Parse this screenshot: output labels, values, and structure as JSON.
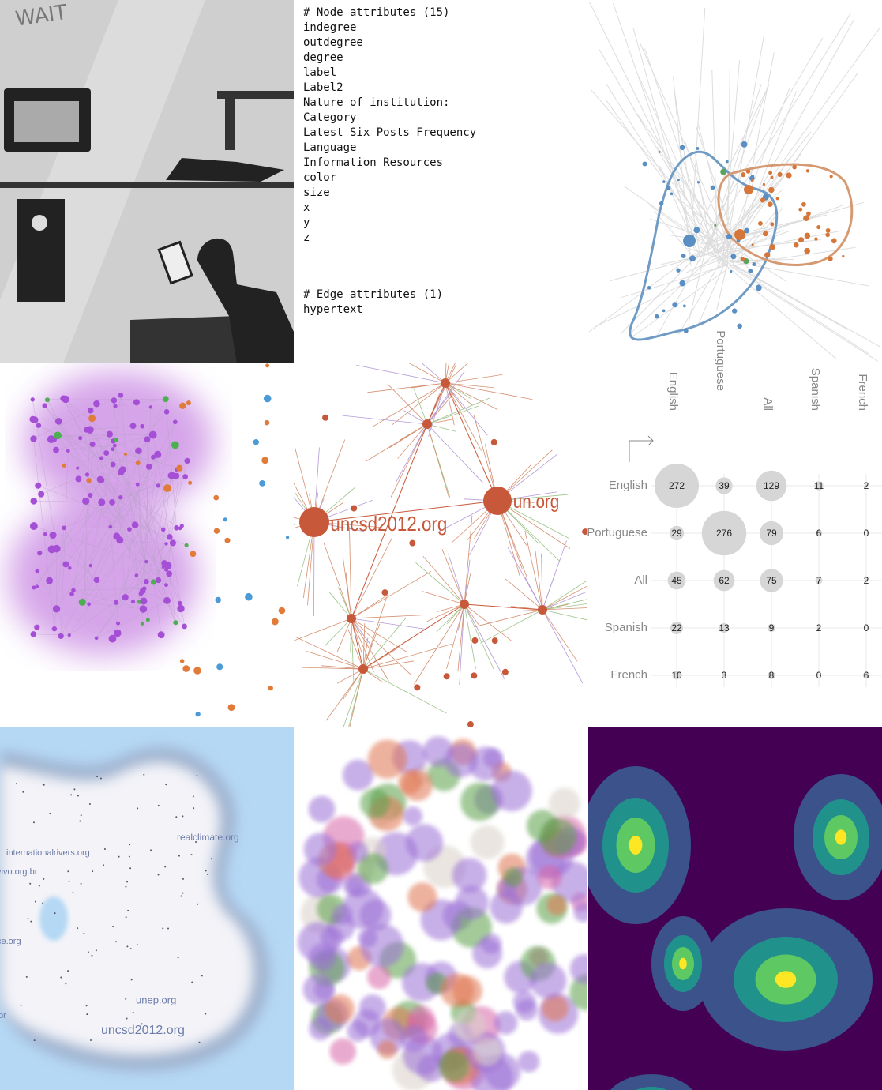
{
  "comic": {
    "text": "WAIT"
  },
  "attributes": {
    "node_header": "# Node attributes (15)",
    "node_attributes": [
      "indegree",
      "outdegree",
      "degree",
      "label",
      "Label2",
      "Nature of institution:",
      "Category",
      "Latest Six Posts Frequency",
      "Language",
      "Information Resources",
      "color",
      "size",
      "x",
      "y",
      "z"
    ],
    "edge_header": "# Edge attributes (1)",
    "edge_attributes": [
      "hypertext"
    ]
  },
  "network": {
    "labels": [
      "uncsd2012.org",
      "un.org"
    ]
  },
  "matrix": {
    "columns": [
      "English",
      "Portuguese",
      "All",
      "Spanish",
      "French"
    ],
    "rows": [
      {
        "label": "English",
        "values": [
          272,
          39,
          129,
          11,
          2
        ]
      },
      {
        "label": "Portuguese",
        "values": [
          29,
          276,
          79,
          6,
          0
        ]
      },
      {
        "label": "All",
        "values": [
          45,
          62,
          75,
          7,
          2
        ]
      },
      {
        "label": "Spanish",
        "values": [
          22,
          13,
          9,
          2,
          0
        ]
      },
      {
        "label": "French",
        "values": [
          10,
          3,
          8,
          0,
          6
        ]
      }
    ]
  },
  "map": {
    "labels": [
      "internationalrivers.org",
      "realclimate.org",
      "vivo.org.br",
      "ce.org",
      "br",
      "unep.org",
      "uncsd2012.org"
    ]
  }
}
